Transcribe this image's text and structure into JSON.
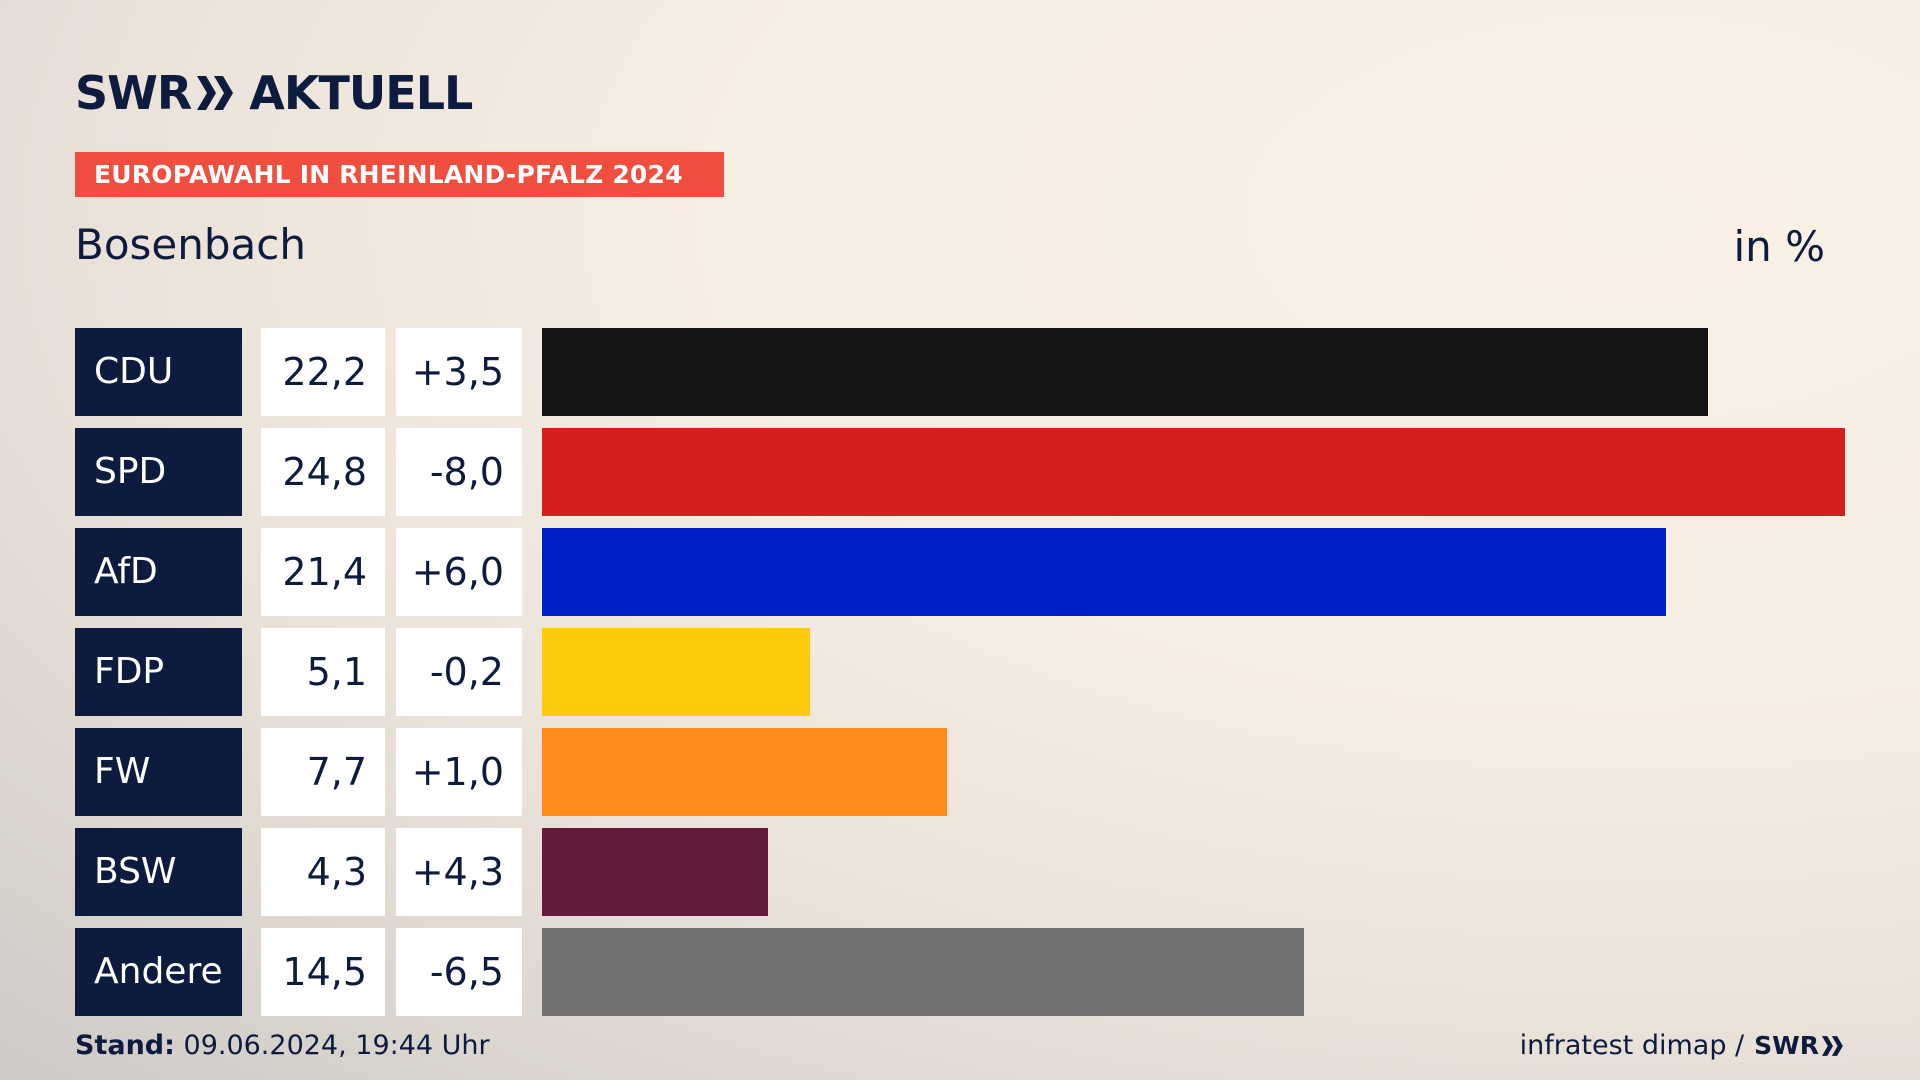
{
  "brand": {
    "logo_text": "SWR",
    "logo_suffix": "AKTUELL"
  },
  "banner": "EUROPAWAHL IN RHEINLAND-PFALZ 2024",
  "place": "Bosenbach",
  "unit": "in %",
  "chart_data": {
    "type": "bar",
    "orientation": "horizontal",
    "title": "Bosenbach",
    "unit": "in %",
    "categories": [
      "CDU",
      "SPD",
      "AfD",
      "FDP",
      "FW",
      "BSW",
      "Andere"
    ],
    "values": [
      22.2,
      24.8,
      21.4,
      5.1,
      7.7,
      4.3,
      14.5
    ],
    "value_labels": [
      "22,2",
      "24,8",
      "21,4",
      "5,1",
      "7,7",
      "4,3",
      "14,5"
    ],
    "change_labels": [
      "+3,5",
      "-8,0",
      "+6,0",
      "-0,2",
      "+1,0",
      "+4,3",
      "-6,5"
    ],
    "changes": [
      3.5,
      -8.0,
      6.0,
      -0.2,
      1.0,
      4.3,
      -6.5
    ],
    "colors": [
      "#141414",
      "#d51f1f",
      "#001fc6",
      "#fdcb0a",
      "#fe8c1a",
      "#65193c",
      "#717274"
    ],
    "xlim": [
      0,
      24.8
    ],
    "grid": false
  },
  "footer": {
    "stand_label": "Stand:",
    "stand_value": "09.06.2024, 19:44 Uhr",
    "source": "infratest dimap /",
    "source_logo": "SWR"
  }
}
